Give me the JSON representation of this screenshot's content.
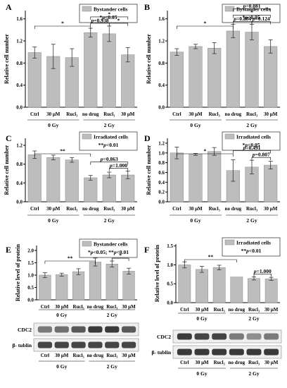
{
  "colors": {
    "bar": "#bdbdbd",
    "bar_stroke": "#8a8a8a",
    "axis": "#000000",
    "band_dark": "#1a1a1a",
    "band_bg": "#efefef"
  },
  "chart_data": [
    {
      "panel": "A",
      "type": "bar",
      "ylabel": "Relative cell number",
      "yticks": [
        "0.0",
        "0.4",
        "0.8",
        "1.2",
        "1.6"
      ],
      "ylim": [
        0,
        1.75
      ],
      "categories": [
        "Ctrl",
        "30 μM",
        "Rucl₃",
        "no drug",
        "Rucl₃",
        "30 μM"
      ],
      "values": [
        0.99,
        0.92,
        0.9,
        1.35,
        1.33,
        0.95
      ],
      "errors": [
        0.1,
        0.22,
        0.16,
        0.08,
        0.14,
        0.13
      ],
      "groups": [
        {
          "label": "0 Gy",
          "from": 0,
          "to": 2
        },
        {
          "label": "2 Gy",
          "from": 3,
          "to": 5
        }
      ],
      "legend": {
        "swatch_label": "Bystander cells",
        "sig": "*p<0.05"
      },
      "annotations": [
        {
          "from": 0,
          "to": 3,
          "text": "*",
          "level": 0
        },
        {
          "from": 3,
          "to": 4,
          "text": "p=0.938",
          "level": 1
        },
        {
          "from": 3,
          "to": 5,
          "text": "*",
          "level": 2
        },
        {
          "from": 4,
          "to": 5,
          "text": "*",
          "level": 1
        }
      ]
    },
    {
      "panel": "B",
      "type": "bar",
      "ylabel": "Relative cell number",
      "yticks": [
        "0.0",
        "0.4",
        "0.8",
        "1.2",
        "1.6"
      ],
      "ylim": [
        0,
        1.75
      ],
      "categories": [
        "Ctrl",
        "30 μM",
        "Rucl₃",
        "no drug",
        "Rucl₃",
        "30 μM"
      ],
      "values": [
        1.0,
        1.1,
        1.07,
        1.38,
        1.36,
        1.1
      ],
      "errors": [
        0.06,
        0.04,
        0.1,
        0.12,
        0.14,
        0.12
      ],
      "groups": [
        {
          "label": "0 Gy",
          "from": 0,
          "to": 2
        },
        {
          "label": "2 Gy",
          "from": 3,
          "to": 5
        }
      ],
      "legend": {
        "swatch_label": "Bystander cells",
        "sig": "*p<0.05"
      },
      "annotations": [
        {
          "from": 0,
          "to": 3,
          "text": "*",
          "level": 0
        },
        {
          "from": 3,
          "to": 4,
          "text": "p=0.804",
          "level": 1
        },
        {
          "from": 3,
          "to": 5,
          "text": "p=0.081",
          "level": 3
        },
        {
          "from": 3,
          "to": 5,
          "text": "*",
          "level": 2
        },
        {
          "from": 4,
          "to": 5,
          "text": "p=0.124",
          "level": 1
        }
      ]
    },
    {
      "panel": "C",
      "type": "bar",
      "ylabel": "Relative cell number",
      "yticks": [
        "0.0",
        "0.4",
        "0.8",
        "1.2"
      ],
      "ylim": [
        0,
        1.35
      ],
      "categories": [
        "Ctrl",
        "30 μM",
        "Rucl₃",
        "no drug",
        "Rucl₃",
        "30 μM"
      ],
      "values": [
        1.0,
        0.94,
        0.89,
        0.51,
        0.57,
        0.57
      ],
      "errors": [
        0.08,
        0.05,
        0.05,
        0.05,
        0.06,
        0.08
      ],
      "groups": [
        {
          "label": "0 Gy",
          "from": 0,
          "to": 2
        },
        {
          "label": "2 Gy",
          "from": 3,
          "to": 5
        }
      ],
      "legend": {
        "swatch_label": "Irradiated cells",
        "sig": "**p<0.01"
      },
      "annotations": [
        {
          "from": 0,
          "to": 3,
          "text": "**",
          "level": 0
        },
        {
          "from": 3,
          "to": 5,
          "text": "p=0.863",
          "level": 2
        },
        {
          "from": 4,
          "to": 5,
          "text": "p=1.000",
          "level": 1
        }
      ]
    },
    {
      "panel": "D",
      "type": "bar",
      "ylabel": "Relative cell number",
      "yticks": [
        "0.0",
        "0.2",
        "0.4",
        "0.6",
        "0.8",
        "1.0",
        "1.2"
      ],
      "ylim": [
        0,
        1.3
      ],
      "categories": [
        "Ctrl",
        "30 μM",
        "Rucl₃",
        "no drug",
        "Rucl₃",
        "30 μM"
      ],
      "values": [
        1.0,
        0.97,
        1.03,
        0.64,
        0.71,
        0.75
      ],
      "errors": [
        0.12,
        0.02,
        0.08,
        0.22,
        0.14,
        0.08
      ],
      "groups": [
        {
          "label": "0 Gy",
          "from": 0,
          "to": 2
        },
        {
          "label": "2 Gy",
          "from": 3,
          "to": 5
        }
      ],
      "legend": {
        "swatch_label": "Irradiated cells",
        "sig": "*p<0.05"
      },
      "annotations": [
        {
          "from": 0,
          "to": 3,
          "text": "*",
          "level": 0
        },
        {
          "from": 3,
          "to": 5,
          "text": "p=0.491",
          "level": 2
        },
        {
          "from": 4,
          "to": 5,
          "text": "p=0.807",
          "level": 1
        }
      ]
    },
    {
      "panel": "E",
      "type": "bar",
      "ylabel": "Relative level of protein",
      "yticks": [
        "0.0",
        "0.5",
        "1.0",
        "1.5",
        "2.0"
      ],
      "ylim": [
        0,
        2.2
      ],
      "categories": [
        "Ctrl",
        "30 μM",
        "Rucl₃",
        "no drug",
        "Rucl₃",
        "30 μM"
      ],
      "values": [
        1.0,
        1.02,
        1.14,
        1.53,
        1.45,
        1.16
      ],
      "errors": [
        0.1,
        0.06,
        0.12,
        0.16,
        0.12,
        0.12
      ],
      "groups": [
        {
          "label": "0 Gy",
          "from": 0,
          "to": 2
        },
        {
          "label": "2 Gy",
          "from": 3,
          "to": 5
        }
      ],
      "legend": {
        "swatch_label": "Bystander cells",
        "sig": "*p<0.05; **p<0.01"
      },
      "annotations": [
        {
          "from": 0,
          "to": 3,
          "text": "**",
          "level": 0
        },
        {
          "from": 4,
          "to": 5,
          "text": "*",
          "level": 1
        }
      ],
      "blot": {
        "rows": [
          "CDC2",
          "β- tublin"
        ],
        "intensity": [
          [
            0.55,
            0.6,
            0.7,
            0.85,
            0.85,
            0.7
          ],
          [
            0.8,
            0.8,
            0.8,
            0.8,
            0.8,
            0.8
          ]
        ],
        "lane_labels": [
          "Ctrl",
          "30 μM",
          "Rucl₃",
          "no drug",
          "Rucl₃",
          "30 μM"
        ],
        "groups": [
          "0 Gy",
          "2 Gy"
        ]
      }
    },
    {
      "panel": "F",
      "type": "bar",
      "ylabel": "Relative level of protein",
      "yticks": [
        "0.0",
        "0.5",
        "1.0",
        "1.5"
      ],
      "ylim": [
        0,
        1.55
      ],
      "categories": [
        "Ctrl",
        "30 μM",
        "Rucl₃",
        "no drug",
        "Rucl₃",
        "30 μM"
      ],
      "values": [
        1.0,
        0.88,
        0.93,
        0.68,
        0.64,
        0.63
      ],
      "errors": [
        0.08,
        0.08,
        0.06,
        0.0,
        0.04,
        0.04
      ],
      "groups": [
        {
          "label": "0 Gy",
          "from": 0,
          "to": 2
        },
        {
          "label": "2 Gy",
          "from": 3,
          "to": 5
        }
      ],
      "legend": {
        "swatch_label": "Irradiated cells",
        "sig": "**p<0.01"
      },
      "annotations": [
        {
          "from": 0,
          "to": 3,
          "text": "**",
          "level": 0
        },
        {
          "from": 4,
          "to": 5,
          "text": "p=1.000",
          "level": 1
        }
      ],
      "blot": {
        "rows": [
          "CDC2",
          "β- tublin"
        ],
        "intensity": [
          [
            0.85,
            0.8,
            0.8,
            0.55,
            0.45,
            0.55
          ],
          [
            0.85,
            0.85,
            0.85,
            0.85,
            0.85,
            0.85
          ]
        ],
        "lane_labels": [
          "Ctrl",
          "30 μM",
          "Rucl₃",
          "no drug",
          "Rucl₃",
          "30 μM"
        ],
        "groups": [
          "0 Gy",
          "2 Gy"
        ]
      }
    }
  ]
}
